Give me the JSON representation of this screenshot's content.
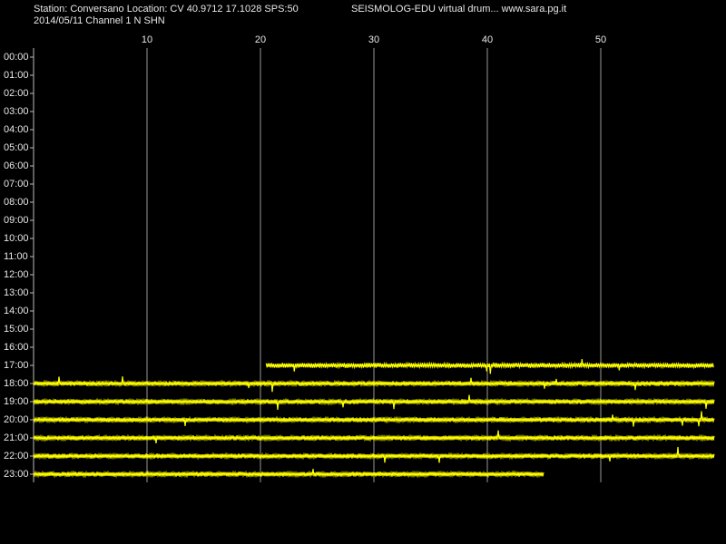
{
  "header": {
    "station": "Station: Conversano Location: CV 40.9712 17.1028 SPS:50",
    "program": "SEISMOLOG-EDU virtual drum... www.sara.pg.it",
    "channel": "2014/05/11  Channel 1 N SHN"
  },
  "chart_data": {
    "type": "drum",
    "categories": [
      "00:00",
      "01:00",
      "02:00",
      "03:00",
      "04:00",
      "05:00",
      "06:00",
      "07:00",
      "08:00",
      "09:00",
      "10:00",
      "11:00",
      "12:00",
      "13:00",
      "14:00",
      "15:00",
      "16:00",
      "17:00",
      "18:00",
      "19:00",
      "20:00",
      "21:00",
      "22:00",
      "23:00"
    ],
    "trace_start": [
      null,
      null,
      null,
      null,
      null,
      null,
      null,
      null,
      null,
      null,
      null,
      null,
      null,
      null,
      null,
      null,
      null,
      20.5,
      0,
      0,
      0,
      0,
      0,
      0
    ],
    "trace_end": [
      null,
      null,
      null,
      null,
      null,
      null,
      null,
      null,
      null,
      null,
      null,
      null,
      null,
      null,
      null,
      null,
      null,
      60,
      60,
      60,
      60,
      60,
      60,
      45
    ],
    "color": "#ffff00",
    "xlim": [
      0,
      60
    ],
    "xticks": [
      10,
      20,
      30,
      40,
      50
    ],
    "grid": true
  }
}
